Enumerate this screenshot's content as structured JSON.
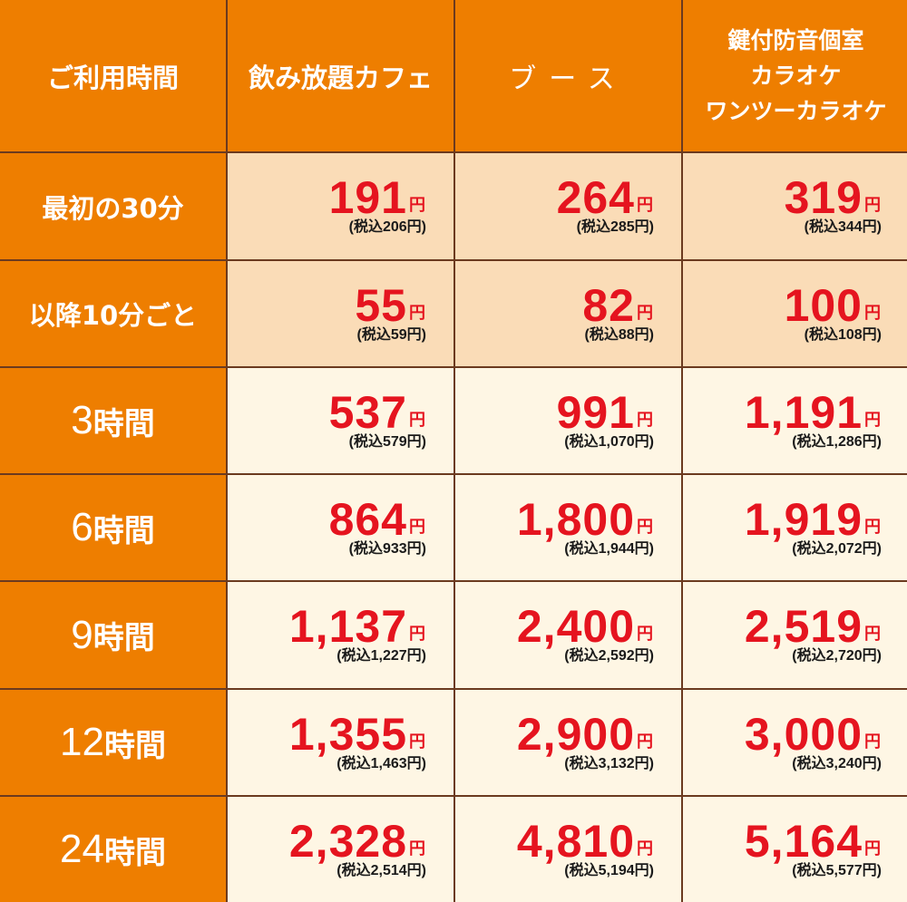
{
  "header": {
    "col0": "ご利用時間",
    "col1": "飲み放題カフェ",
    "col2": "ブース",
    "col3_lines": [
      "鍵付防音個室",
      "カラオケ",
      "ワンツーカラオケ"
    ]
  },
  "rows": [
    {
      "label_text": "最初の30分",
      "cells": [
        {
          "amount": "191",
          "yen": "円",
          "tax": "(税込206円)"
        },
        {
          "amount": "264",
          "yen": "円",
          "tax": "(税込285円)"
        },
        {
          "amount": "319",
          "yen": "円",
          "tax": "(税込344円)"
        }
      ]
    },
    {
      "label_text": "以降10分ごと",
      "cells": [
        {
          "amount": "55",
          "yen": "円",
          "tax": "(税込59円)"
        },
        {
          "amount": "82",
          "yen": "円",
          "tax": "(税込88円)"
        },
        {
          "amount": "100",
          "yen": "円",
          "tax": "(税込108円)"
        }
      ]
    },
    {
      "label_num": "3",
      "label_suffix": "時間",
      "cells": [
        {
          "amount": "537",
          "yen": "円",
          "tax": "(税込579円)"
        },
        {
          "amount": "991",
          "yen": "円",
          "tax": "(税込1,070円)"
        },
        {
          "amount": "1,191",
          "yen": "円",
          "tax": "(税込1,286円)"
        }
      ]
    },
    {
      "label_num": "6",
      "label_suffix": "時間",
      "cells": [
        {
          "amount": "864",
          "yen": "円",
          "tax": "(税込933円)"
        },
        {
          "amount": "1,800",
          "yen": "円",
          "tax": "(税込1,944円)"
        },
        {
          "amount": "1,919",
          "yen": "円",
          "tax": "(税込2,072円)"
        }
      ]
    },
    {
      "label_num": "9",
      "label_suffix": "時間",
      "cells": [
        {
          "amount": "1,137",
          "yen": "円",
          "tax": "(税込1,227円)"
        },
        {
          "amount": "2,400",
          "yen": "円",
          "tax": "(税込2,592円)"
        },
        {
          "amount": "2,519",
          "yen": "円",
          "tax": "(税込2,720円)"
        }
      ]
    },
    {
      "label_num": "12",
      "label_suffix": "時間",
      "cells": [
        {
          "amount": "1,355",
          "yen": "円",
          "tax": "(税込1,463円)"
        },
        {
          "amount": "2,900",
          "yen": "円",
          "tax": "(税込3,132円)"
        },
        {
          "amount": "3,000",
          "yen": "円",
          "tax": "(税込3,240円)"
        }
      ]
    },
    {
      "label_num": "24",
      "label_suffix": "時間",
      "cells": [
        {
          "amount": "2,328",
          "yen": "円",
          "tax": "(税込2,514円)"
        },
        {
          "amount": "4,810",
          "yen": "円",
          "tax": "(税込5,194円)"
        },
        {
          "amount": "5,164",
          "yen": "円",
          "tax": "(税込5,577円)"
        }
      ]
    }
  ],
  "colors": {
    "header_bg": "#ee7e00",
    "peach_bg": "#fadcb7",
    "cream_bg": "#fef6e4",
    "price_red": "#e5141f",
    "border": "#6b3a1f"
  }
}
